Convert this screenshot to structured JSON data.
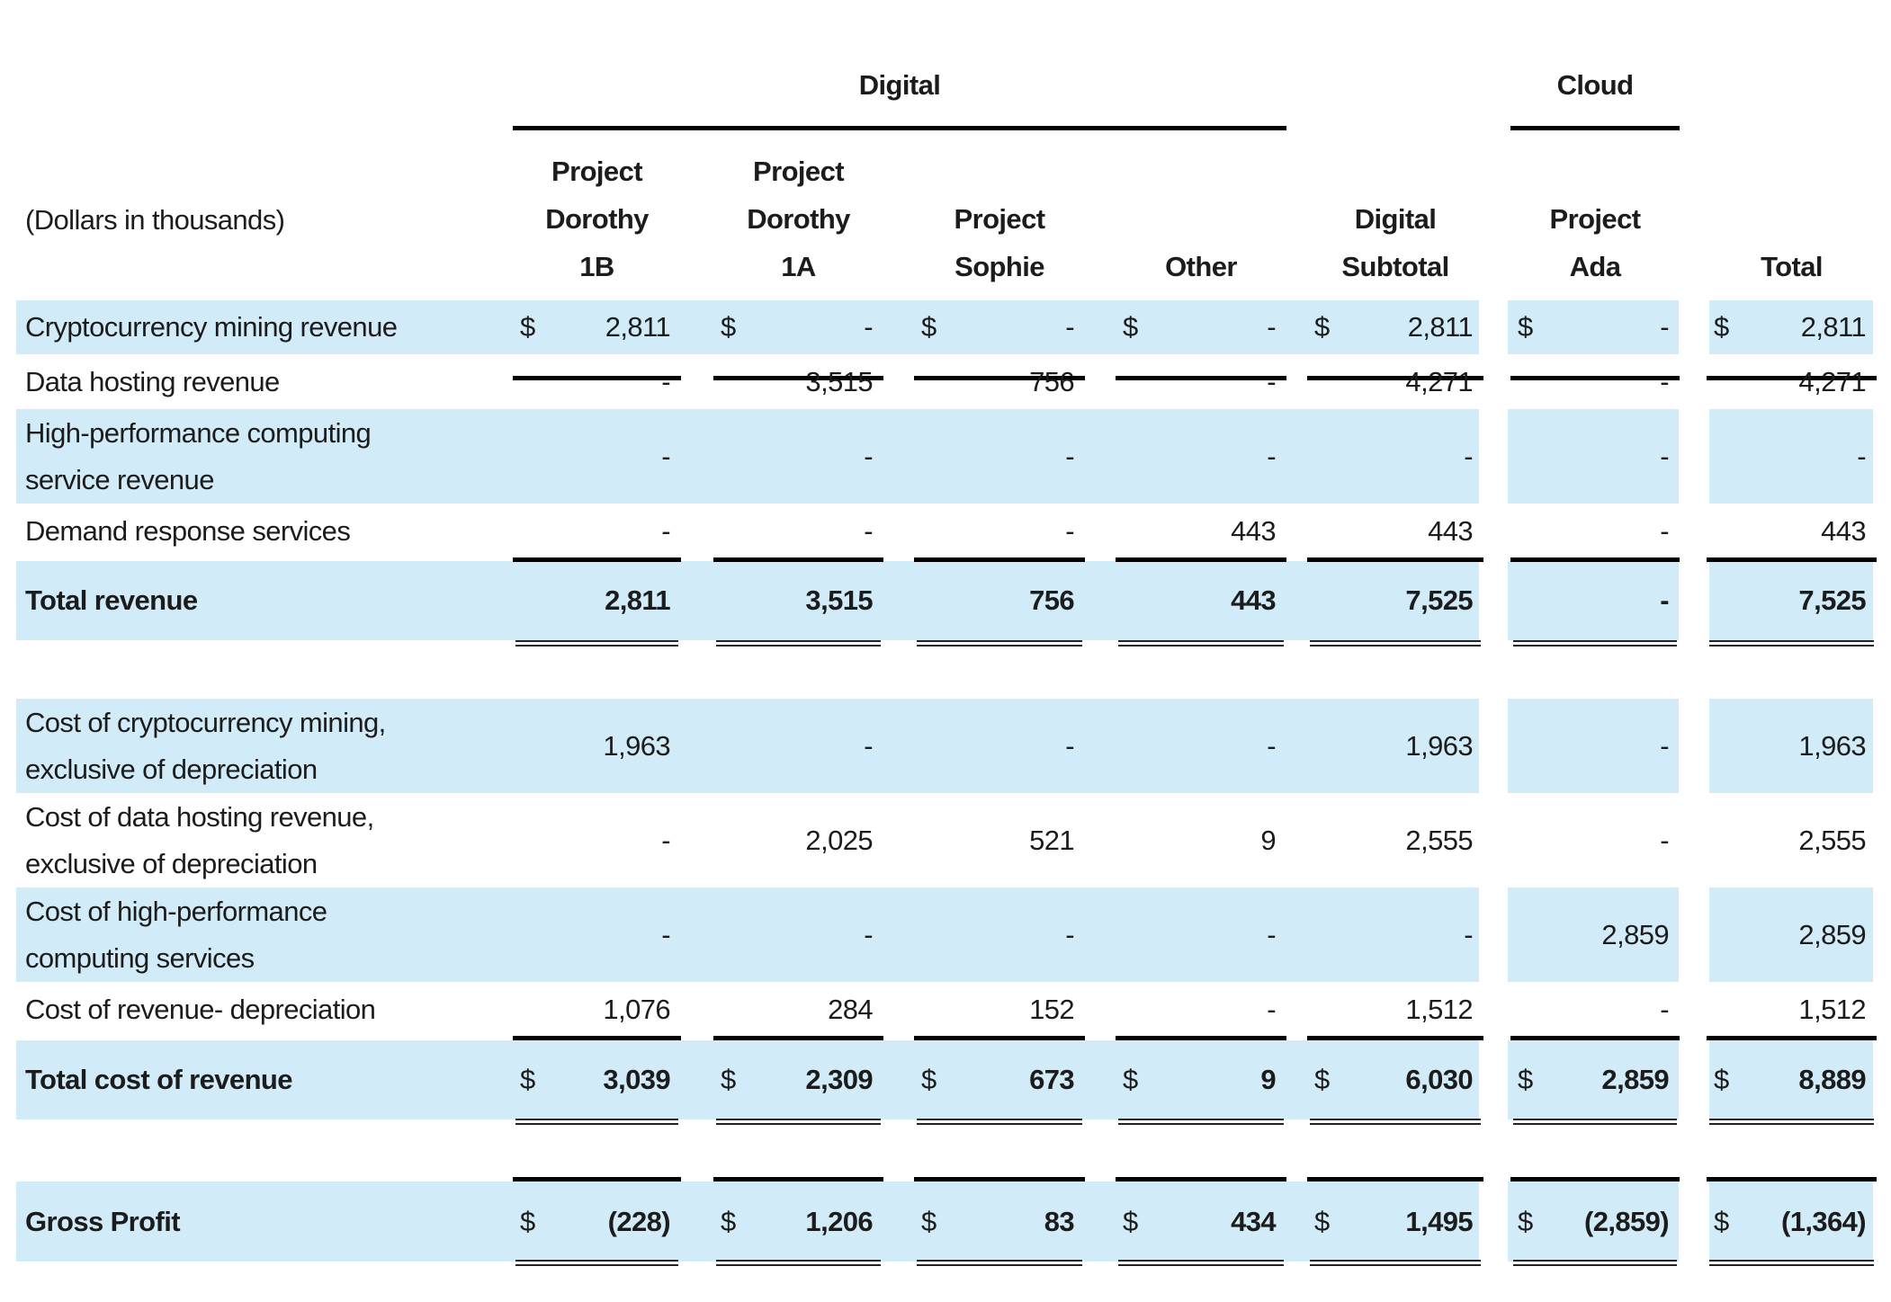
{
  "table": {
    "units_label": "(Dollars in thousands)",
    "groups": [
      {
        "label": "Digital",
        "span": "Project Dorothy 1B – Other"
      },
      {
        "label": "Cloud",
        "span": "Project Ada"
      }
    ],
    "columns": [
      {
        "lines": [
          "Project",
          "Dorothy",
          "1B"
        ]
      },
      {
        "lines": [
          "Project",
          "Dorothy",
          "1A"
        ]
      },
      {
        "lines": [
          "",
          "Project",
          "Sophie"
        ]
      },
      {
        "lines": [
          "",
          "",
          "Other"
        ]
      },
      {
        "lines": [
          "",
          "Digital",
          "Subtotal"
        ]
      },
      {
        "lines": [
          "",
          "Project",
          "Ada"
        ]
      },
      {
        "lines": [
          "",
          "",
          "Total"
        ]
      }
    ],
    "rows": [
      {
        "label": [
          "Cryptocurrency mining revenue"
        ],
        "currency": true,
        "bold": false,
        "values": [
          "2,811",
          "-",
          "-",
          "-",
          "2,811",
          "-",
          "2,811"
        ]
      },
      {
        "label": [
          "Data hosting revenue"
        ],
        "currency": false,
        "bold": false,
        "values": [
          "-",
          "3,515",
          "756",
          "-",
          "4,271",
          "-",
          "4,271"
        ]
      },
      {
        "label": [
          "High-performance computing",
          "service revenue"
        ],
        "currency": false,
        "bold": false,
        "values": [
          "-",
          "-",
          "-",
          "-",
          "-",
          "-",
          "-"
        ]
      },
      {
        "label": [
          "Demand response services"
        ],
        "currency": false,
        "bold": false,
        "values": [
          "-",
          "-",
          "-",
          "443",
          "443",
          "-",
          "443"
        ]
      },
      {
        "label": [
          "Total revenue"
        ],
        "currency": false,
        "bold": true,
        "values": [
          "2,811",
          "3,515",
          "756",
          "443",
          "7,525",
          "-",
          "7,525"
        ]
      },
      {
        "label": [
          "Cost of cryptocurrency mining,",
          "exclusive of depreciation"
        ],
        "currency": false,
        "bold": false,
        "values": [
          "1,963",
          "-",
          "-",
          "-",
          "1,963",
          "-",
          "1,963"
        ]
      },
      {
        "label": [
          "Cost of data hosting revenue,",
          "exclusive of depreciation"
        ],
        "currency": false,
        "bold": false,
        "values": [
          "-",
          "2,025",
          "521",
          "9",
          "2,555",
          "-",
          "2,555"
        ]
      },
      {
        "label": [
          "Cost of high-performance",
          "computing services"
        ],
        "currency": false,
        "bold": false,
        "values": [
          "-",
          "-",
          "-",
          "-",
          "-",
          "2,859",
          "2,859"
        ]
      },
      {
        "label": [
          "Cost of revenue- depreciation"
        ],
        "currency": false,
        "bold": false,
        "values": [
          "1,076",
          "284",
          "152",
          "-",
          "1,512",
          "-",
          "1,512"
        ]
      },
      {
        "label": [
          "Total cost of revenue"
        ],
        "currency": true,
        "bold": true,
        "values": [
          "3,039",
          "2,309",
          "673",
          "9",
          "6,030",
          "2,859",
          "8,889"
        ]
      },
      {
        "label": [
          "Gross Profit"
        ],
        "currency": true,
        "bold": true,
        "values": [
          "(228)",
          "1,206",
          "83",
          "434",
          "1,495",
          "(2,859)",
          "(1,364)"
        ]
      }
    ],
    "currency_symbol": "$",
    "highlight_color": "#d1ebf8"
  }
}
